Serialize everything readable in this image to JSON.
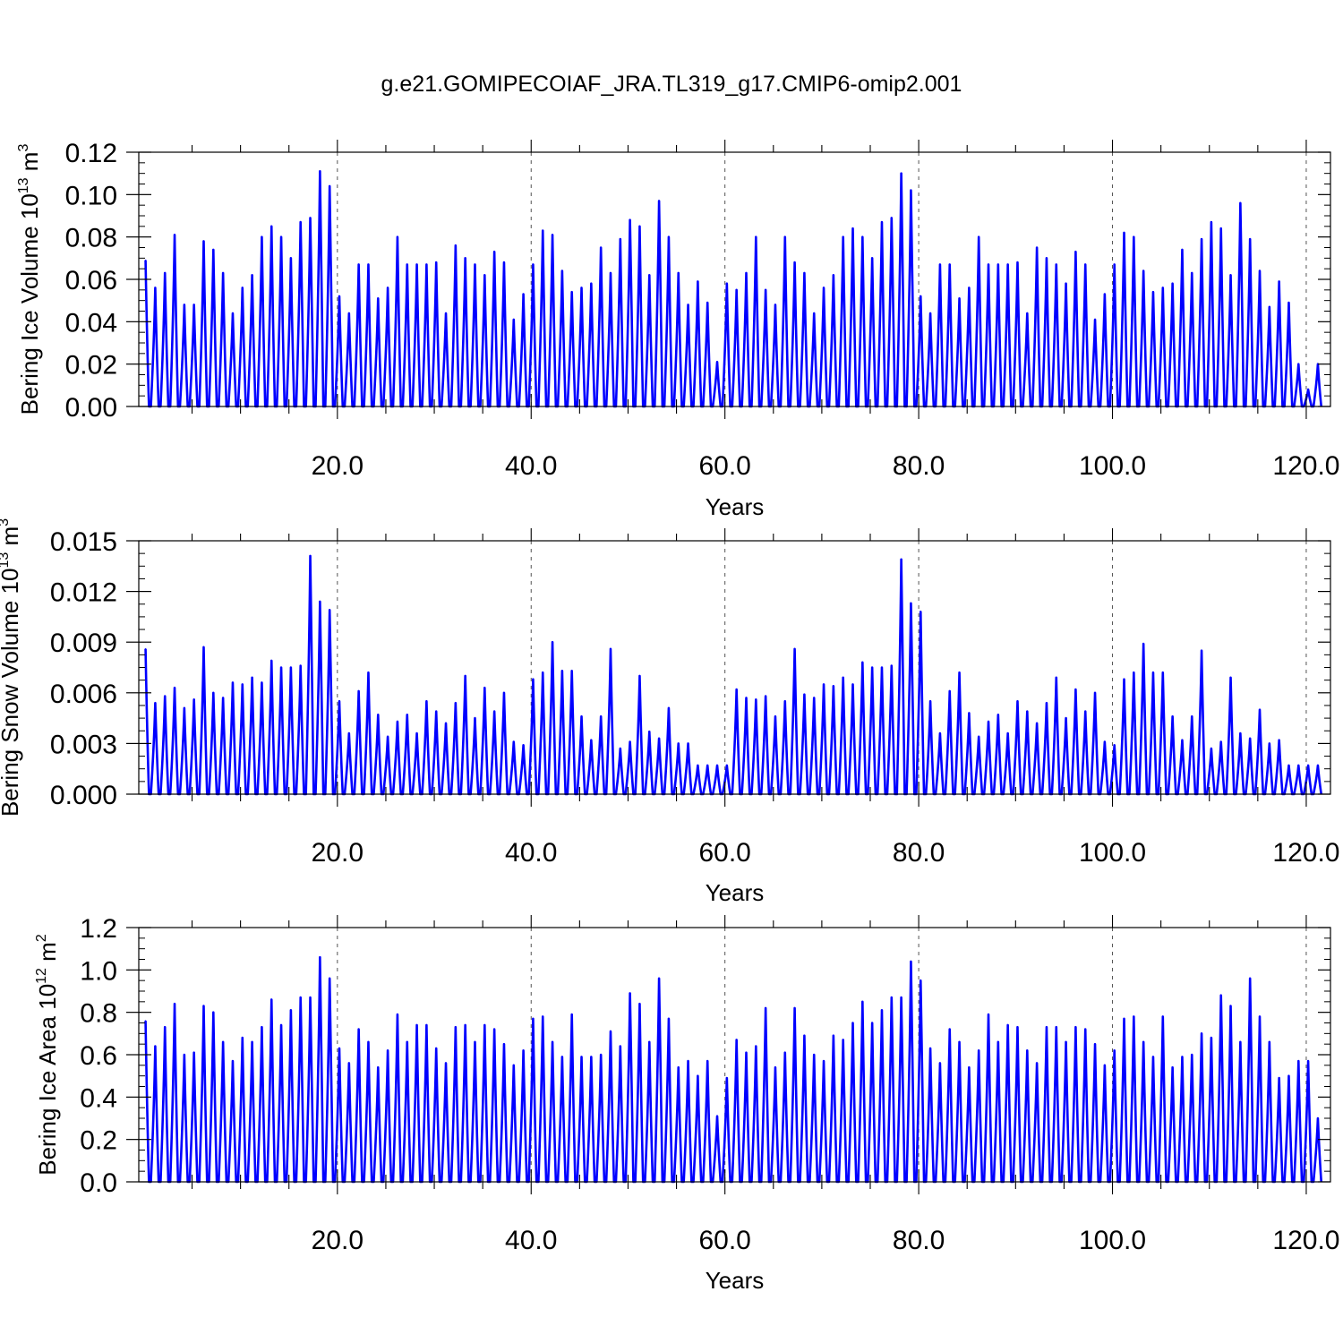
{
  "title": "g.e21.GOMIPECOIAF_JRA.TL319_g17.CMIP6-omip2.001",
  "colors": {
    "series": "#0000ff",
    "frame": "#000000",
    "refline": "#555555"
  },
  "chart_data": [
    {
      "type": "line",
      "ylabel": {
        "text": "Bering Ice Volume 10",
        "exp": "13",
        "unit": " m",
        "unit_exp": "3"
      },
      "xlabel": "Years",
      "xlim": [
        -0.5,
        122.5
      ],
      "ylim": [
        0,
        0.12
      ],
      "yticks": [
        0,
        0.02,
        0.04,
        0.06,
        0.08,
        0.1,
        0.12
      ],
      "ytick_labels": [
        "0.00",
        "0.02",
        "0.04",
        "0.06",
        "0.08",
        "0.10",
        "0.12"
      ],
      "xticks": [
        20,
        40,
        60,
        80,
        100,
        120
      ],
      "xtick_labels": [
        "20.0",
        "40.0",
        "60.0",
        "80.0",
        "100.0",
        "120.0"
      ],
      "reference_lines_x": [
        20,
        40,
        60,
        80,
        100,
        120
      ],
      "series": [
        {
          "peak_years": [
            0.2,
            1.2,
            2.2,
            3.2,
            4.2,
            5.2,
            6.2,
            7.2,
            8.2,
            9.2,
            10.2,
            11.2,
            12.2,
            13.2,
            14.2,
            15.2,
            16.2,
            17.2,
            18.2,
            19.2,
            20.2,
            21.2,
            22.2,
            23.2,
            24.2,
            25.2,
            26.2,
            27.2,
            28.2,
            29.2,
            30.2,
            31.2,
            32.2,
            33.2,
            34.2,
            35.2,
            36.2,
            37.2,
            38.2,
            39.2,
            40.2,
            41.2,
            42.2,
            43.2,
            44.2,
            45.2,
            46.2,
            47.2,
            48.2,
            49.2,
            50.2,
            51.2,
            52.2,
            53.2,
            54.2,
            55.2,
            56.2,
            57.2,
            58.2,
            59.2,
            60.2,
            61.2,
            62.2,
            63.2,
            64.2,
            65.2,
            66.2,
            67.2,
            68.2,
            69.2,
            70.2,
            71.2,
            72.2,
            73.2,
            74.2,
            75.2,
            76.2,
            77.2,
            78.2,
            79.2,
            80.2,
            81.2,
            82.2,
            83.2,
            84.2,
            85.2,
            86.2,
            87.2,
            88.2,
            89.2,
            90.2,
            91.2,
            92.2,
            93.2,
            94.2,
            95.2,
            96.2,
            97.2,
            98.2,
            99.2,
            100.2,
            101.2,
            102.2,
            103.2,
            104.2,
            105.2,
            106.2,
            107.2,
            108.2,
            109.2,
            110.2,
            111.2,
            112.2,
            113.2,
            114.2,
            115.2,
            116.2,
            117.2,
            118.2,
            119.2,
            120.2,
            121.2
          ],
          "peak_values": [
            0.069,
            0.056,
            0.063,
            0.081,
            0.048,
            0.048,
            0.078,
            0.074,
            0.063,
            0.044,
            0.056,
            0.062,
            0.08,
            0.085,
            0.08,
            0.07,
            0.087,
            0.089,
            0.111,
            0.104,
            0.052,
            0.044,
            0.067,
            0.067,
            0.051,
            0.056,
            0.08,
            0.067,
            0.067,
            0.067,
            0.068,
            0.044,
            0.076,
            0.07,
            0.067,
            0.062,
            0.073,
            0.068,
            0.041,
            0.053,
            0.067,
            0.083,
            0.081,
            0.064,
            0.054,
            0.056,
            0.058,
            0.075,
            0.063,
            0.079,
            0.088,
            0.085,
            0.062,
            0.097,
            0.08,
            0.063,
            0.048,
            0.059,
            0.049,
            0.021,
            0.058,
            0.055,
            0.063,
            0.08,
            0.055,
            0.048,
            0.08,
            0.068,
            0.063,
            0.044,
            0.056,
            0.062,
            0.08,
            0.084,
            0.08,
            0.07,
            0.087,
            0.089,
            0.11,
            0.102,
            0.052,
            0.044,
            0.067,
            0.067,
            0.051,
            0.056,
            0.08,
            0.067,
            0.067,
            0.067,
            0.068,
            0.044,
            0.075,
            0.07,
            0.067,
            0.058,
            0.073,
            0.067,
            0.041,
            0.053,
            0.067,
            0.082,
            0.08,
            0.064,
            0.054,
            0.056,
            0.058,
            0.074,
            0.063,
            0.079,
            0.087,
            0.084,
            0.062,
            0.096,
            0.079,
            0.064,
            0.047,
            0.059,
            0.049,
            0.02,
            0.008,
            0.02
          ]
        }
      ]
    },
    {
      "type": "line",
      "ylabel": {
        "text": "Bering Snow Volume 10",
        "exp": "13",
        "unit": " m",
        "unit_exp": "3"
      },
      "xlabel": "Years",
      "xlim": [
        -0.5,
        122.5
      ],
      "ylim": [
        0,
        0.015
      ],
      "yticks": [
        0,
        0.003,
        0.006,
        0.009,
        0.012,
        0.015
      ],
      "ytick_labels": [
        "0.000",
        "0.003",
        "0.006",
        "0.009",
        "0.012",
        "0.015"
      ],
      "xticks": [
        20,
        40,
        60,
        80,
        100,
        120
      ],
      "xtick_labels": [
        "20.0",
        "40.0",
        "60.0",
        "80.0",
        "100.0",
        "120.0"
      ],
      "reference_lines_x": [
        20,
        40,
        60,
        80,
        100,
        120
      ],
      "series": [
        {
          "peak_years": [
            0.2,
            1.2,
            2.2,
            3.2,
            4.2,
            5.2,
            6.2,
            7.2,
            8.2,
            9.2,
            10.2,
            11.2,
            12.2,
            13.2,
            14.2,
            15.2,
            16.2,
            17.2,
            18.2,
            19.2,
            20.2,
            21.2,
            22.2,
            23.2,
            24.2,
            25.2,
            26.2,
            27.2,
            28.2,
            29.2,
            30.2,
            31.2,
            32.2,
            33.2,
            34.2,
            35.2,
            36.2,
            37.2,
            38.2,
            39.2,
            40.2,
            41.2,
            42.2,
            43.2,
            44.2,
            45.2,
            46.2,
            47.2,
            48.2,
            49.2,
            50.2,
            51.2,
            52.2,
            53.2,
            54.2,
            55.2,
            56.2,
            57.2,
            58.2,
            59.2,
            60.2,
            61.2,
            62.2,
            63.2,
            64.2,
            65.2,
            66.2,
            67.2,
            68.2,
            69.2,
            70.2,
            71.2,
            72.2,
            73.2,
            74.2,
            75.2,
            76.2,
            77.2,
            78.2,
            79.2,
            80.2,
            81.2,
            82.2,
            83.2,
            84.2,
            85.2,
            86.2,
            87.2,
            88.2,
            89.2,
            90.2,
            91.2,
            92.2,
            93.2,
            94.2,
            95.2,
            96.2,
            97.2,
            98.2,
            99.2,
            100.2,
            101.2,
            102.2,
            103.2,
            104.2,
            105.2,
            106.2,
            107.2,
            108.2,
            109.2,
            110.2,
            111.2,
            112.2,
            113.2,
            114.2,
            115.2,
            116.2,
            117.2,
            118.2,
            119.2,
            120.2,
            121.2
          ],
          "peak_values": [
            0.0086,
            0.0054,
            0.0058,
            0.0063,
            0.0051,
            0.0056,
            0.0087,
            0.006,
            0.0057,
            0.0066,
            0.0065,
            0.0069,
            0.0066,
            0.0079,
            0.0075,
            0.0075,
            0.0076,
            0.0141,
            0.0114,
            0.0109,
            0.0055,
            0.0036,
            0.0061,
            0.0072,
            0.0047,
            0.0034,
            0.0043,
            0.0047,
            0.0036,
            0.0055,
            0.0049,
            0.0042,
            0.0054,
            0.007,
            0.0045,
            0.0063,
            0.0049,
            0.006,
            0.0031,
            0.0029,
            0.0068,
            0.0072,
            0.009,
            0.0073,
            0.0073,
            0.0046,
            0.0032,
            0.0046,
            0.0086,
            0.0027,
            0.0031,
            0.007,
            0.0037,
            0.0033,
            0.0051,
            0.003,
            0.003,
            0.0017,
            0.0017,
            0.0017,
            0.0017,
            0.0062,
            0.0057,
            0.0056,
            0.0058,
            0.0046,
            0.0055,
            0.0086,
            0.0059,
            0.0057,
            0.0065,
            0.0064,
            0.0069,
            0.0065,
            0.0078,
            0.0075,
            0.0075,
            0.0076,
            0.0139,
            0.0113,
            0.0108,
            0.0055,
            0.0036,
            0.0061,
            0.0072,
            0.0048,
            0.0034,
            0.0043,
            0.0047,
            0.0036,
            0.0055,
            0.0049,
            0.0042,
            0.0054,
            0.0069,
            0.0045,
            0.0062,
            0.0049,
            0.006,
            0.0031,
            0.0029,
            0.0068,
            0.0072,
            0.0089,
            0.0072,
            0.0072,
            0.0046,
            0.0032,
            0.0046,
            0.0085,
            0.0027,
            0.0031,
            0.0069,
            0.0036,
            0.0033,
            0.005,
            0.003,
            0.0032,
            0.0017,
            0.0017,
            0.0017,
            0.0017
          ]
        }
      ]
    },
    {
      "type": "line",
      "ylabel": {
        "text": "Bering Ice Area 10",
        "exp": "12",
        "unit": " m",
        "unit_exp": "2"
      },
      "xlabel": "Years",
      "xlim": [
        -0.5,
        122.5
      ],
      "ylim": [
        0,
        1.2
      ],
      "yticks": [
        0,
        0.2,
        0.4,
        0.6,
        0.8,
        1.0,
        1.2
      ],
      "ytick_labels": [
        "0.0",
        "0.2",
        "0.4",
        "0.6",
        "0.8",
        "1.0",
        "1.2"
      ],
      "xticks": [
        20,
        40,
        60,
        80,
        100,
        120
      ],
      "xtick_labels": [
        "20.0",
        "40.0",
        "60.0",
        "80.0",
        "100.0",
        "120.0"
      ],
      "reference_lines_x": [
        20,
        40,
        60,
        80,
        100,
        120
      ],
      "series": [
        {
          "peak_years": [
            0.2,
            1.2,
            2.2,
            3.2,
            4.2,
            5.2,
            6.2,
            7.2,
            8.2,
            9.2,
            10.2,
            11.2,
            12.2,
            13.2,
            14.2,
            15.2,
            16.2,
            17.2,
            18.2,
            19.2,
            20.2,
            21.2,
            22.2,
            23.2,
            24.2,
            25.2,
            26.2,
            27.2,
            28.2,
            29.2,
            30.2,
            31.2,
            32.2,
            33.2,
            34.2,
            35.2,
            36.2,
            37.2,
            38.2,
            39.2,
            40.2,
            41.2,
            42.2,
            43.2,
            44.2,
            45.2,
            46.2,
            47.2,
            48.2,
            49.2,
            50.2,
            51.2,
            52.2,
            53.2,
            54.2,
            55.2,
            56.2,
            57.2,
            58.2,
            59.2,
            60.2,
            61.2,
            62.2,
            63.2,
            64.2,
            65.2,
            66.2,
            67.2,
            68.2,
            69.2,
            70.2,
            71.2,
            72.2,
            73.2,
            74.2,
            75.2,
            76.2,
            77.2,
            78.2,
            79.2,
            80.2,
            81.2,
            82.2,
            83.2,
            84.2,
            85.2,
            86.2,
            87.2,
            88.2,
            89.2,
            90.2,
            91.2,
            92.2,
            93.2,
            94.2,
            95.2,
            96.2,
            97.2,
            98.2,
            99.2,
            100.2,
            101.2,
            102.2,
            103.2,
            104.2,
            105.2,
            106.2,
            107.2,
            108.2,
            109.2,
            110.2,
            111.2,
            112.2,
            113.2,
            114.2,
            115.2,
            116.2,
            117.2,
            118.2,
            119.2,
            120.2,
            121.2
          ],
          "peak_values": [
            0.76,
            0.64,
            0.73,
            0.84,
            0.6,
            0.61,
            0.83,
            0.8,
            0.66,
            0.57,
            0.68,
            0.66,
            0.73,
            0.86,
            0.74,
            0.81,
            0.87,
            0.87,
            1.06,
            0.96,
            0.63,
            0.56,
            0.72,
            0.66,
            0.54,
            0.62,
            0.79,
            0.66,
            0.74,
            0.74,
            0.63,
            0.56,
            0.73,
            0.74,
            0.66,
            0.74,
            0.72,
            0.65,
            0.55,
            0.62,
            0.77,
            0.78,
            0.66,
            0.59,
            0.79,
            0.59,
            0.59,
            0.6,
            0.71,
            0.64,
            0.89,
            0.84,
            0.66,
            0.96,
            0.77,
            0.54,
            0.57,
            0.5,
            0.57,
            0.31,
            0.49,
            0.67,
            0.61,
            0.64,
            0.82,
            0.54,
            0.61,
            0.82,
            0.69,
            0.6,
            0.57,
            0.69,
            0.67,
            0.75,
            0.85,
            0.75,
            0.81,
            0.87,
            0.87,
            1.04,
            0.95,
            0.63,
            0.56,
            0.72,
            0.66,
            0.54,
            0.62,
            0.79,
            0.66,
            0.74,
            0.73,
            0.62,
            0.56,
            0.73,
            0.73,
            0.66,
            0.73,
            0.72,
            0.65,
            0.55,
            0.62,
            0.77,
            0.78,
            0.66,
            0.59,
            0.78,
            0.54,
            0.59,
            0.6,
            0.7,
            0.68,
            0.88,
            0.83,
            0.66,
            0.96,
            0.78,
            0.66,
            0.49,
            0.5,
            0.57,
            0.57,
            0.3
          ]
        }
      ]
    }
  ]
}
